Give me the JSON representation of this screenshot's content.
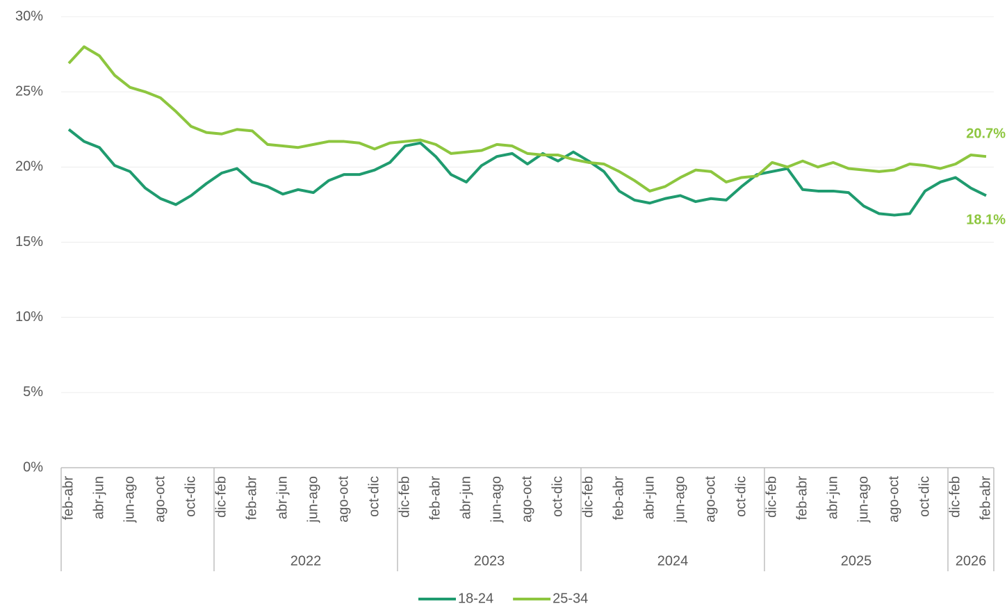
{
  "chart_data": {
    "type": "line",
    "categories": [
      "feb-abr",
      null,
      "abr-jun",
      null,
      "jun-ago",
      null,
      "ago-oct",
      null,
      "oct-dic",
      null,
      "dic-feb",
      null,
      "feb-abr",
      null,
      "abr-jun",
      null,
      "jun-ago",
      null,
      "ago-oct",
      null,
      "oct-dic",
      null,
      "dic-feb",
      null,
      "feb-abr",
      null,
      "abr-jun",
      null,
      "jun-ago",
      null,
      "ago-oct",
      null,
      "oct-dic",
      null,
      "dic-feb",
      null,
      "feb-abr",
      null,
      "abr-jun",
      null,
      "jun-ago",
      null,
      "ago-oct",
      null,
      "oct-dic",
      null,
      "dic-feb",
      null,
      "feb-abr",
      null,
      "abr-jun",
      null,
      "jun-ago",
      null,
      "ago-oct",
      null,
      "oct-dic",
      null,
      "dic-feb",
      null,
      "feb-abr"
    ],
    "groups": [
      {
        "size": 10
      },
      {
        "label": "2022",
        "size": 12
      },
      {
        "label": "2023",
        "size": 12
      },
      {
        "label": "2024",
        "size": 12
      },
      {
        "label": "2025",
        "size": 12
      },
      {
        "label": "2026",
        "size": 3
      }
    ],
    "series": [
      {
        "name": "18-24",
        "color": "#1f9b6f",
        "values": [
          22.5,
          21.7,
          21.3,
          20.1,
          19.7,
          18.6,
          17.9,
          17.5,
          18.1,
          18.9,
          19.6,
          19.9,
          19.0,
          18.7,
          18.2,
          18.5,
          18.3,
          19.1,
          19.5,
          19.5,
          19.8,
          20.3,
          21.4,
          21.6,
          20.7,
          19.5,
          19.0,
          20.1,
          20.7,
          20.9,
          20.2,
          20.9,
          20.4,
          21.0,
          20.4,
          19.7,
          18.4,
          17.8,
          17.6,
          17.9,
          18.1,
          17.7,
          17.9,
          17.8,
          18.7,
          19.5,
          19.7,
          19.9,
          18.5,
          18.4,
          18.4,
          18.3,
          17.4,
          16.9,
          16.8,
          16.9,
          18.4,
          19.0,
          19.3,
          18.6,
          18.1
        ],
        "value_labels": [
          null,
          null,
          null,
          null,
          null,
          null,
          null,
          null,
          null,
          null,
          null,
          null,
          null,
          null,
          null,
          null,
          null,
          null,
          null,
          null,
          null,
          null,
          null,
          null,
          null,
          null,
          null,
          null,
          null,
          null,
          null,
          null,
          null,
          null,
          null,
          null,
          null,
          null,
          null,
          null,
          null,
          null,
          null,
          null,
          null,
          null,
          null,
          null,
          null,
          null,
          null,
          null,
          null,
          null,
          null,
          null,
          null,
          null,
          null,
          null,
          "18.1%"
        ]
      },
      {
        "name": "25-34",
        "color": "#8dc63f",
        "values": [
          26.9,
          28.0,
          27.4,
          26.1,
          25.3,
          25.0,
          24.6,
          23.7,
          22.7,
          22.3,
          22.2,
          22.5,
          22.4,
          21.5,
          21.4,
          21.3,
          21.5,
          21.7,
          21.7,
          21.6,
          21.2,
          21.6,
          21.7,
          21.8,
          21.5,
          20.9,
          21.0,
          21.1,
          21.5,
          21.4,
          20.9,
          20.8,
          20.8,
          20.5,
          20.3,
          20.2,
          19.7,
          19.1,
          18.4,
          18.7,
          19.3,
          19.8,
          19.7,
          19.0,
          19.3,
          19.4,
          20.3,
          20.0,
          20.4,
          20.0,
          20.3,
          19.9,
          19.8,
          19.7,
          19.8,
          20.2,
          20.1,
          19.9,
          20.2,
          20.8,
          20.7
        ],
        "value_labels": [
          null,
          null,
          null,
          null,
          null,
          null,
          null,
          null,
          null,
          null,
          null,
          null,
          null,
          null,
          null,
          null,
          null,
          null,
          null,
          null,
          null,
          null,
          null,
          null,
          null,
          null,
          null,
          null,
          null,
          null,
          null,
          null,
          null,
          null,
          null,
          null,
          null,
          null,
          null,
          null,
          null,
          null,
          null,
          null,
          null,
          null,
          null,
          null,
          null,
          null,
          null,
          null,
          null,
          null,
          null,
          null,
          null,
          null,
          null,
          null,
          "20.7%"
        ]
      }
    ],
    "data_label_color": "#8dc63f",
    "ylim": [
      0,
      30
    ],
    "yticks": [
      {
        "value": 0,
        "label": "0%"
      },
      {
        "value": 5,
        "label": "5%"
      },
      {
        "value": 10,
        "label": "10%"
      },
      {
        "value": 15,
        "label": "15%"
      },
      {
        "value": 20,
        "label": "20%"
      },
      {
        "value": 25,
        "label": "25%"
      },
      {
        "value": 30,
        "label": "30%"
      }
    ],
    "grid": true,
    "legend": "bottom"
  }
}
